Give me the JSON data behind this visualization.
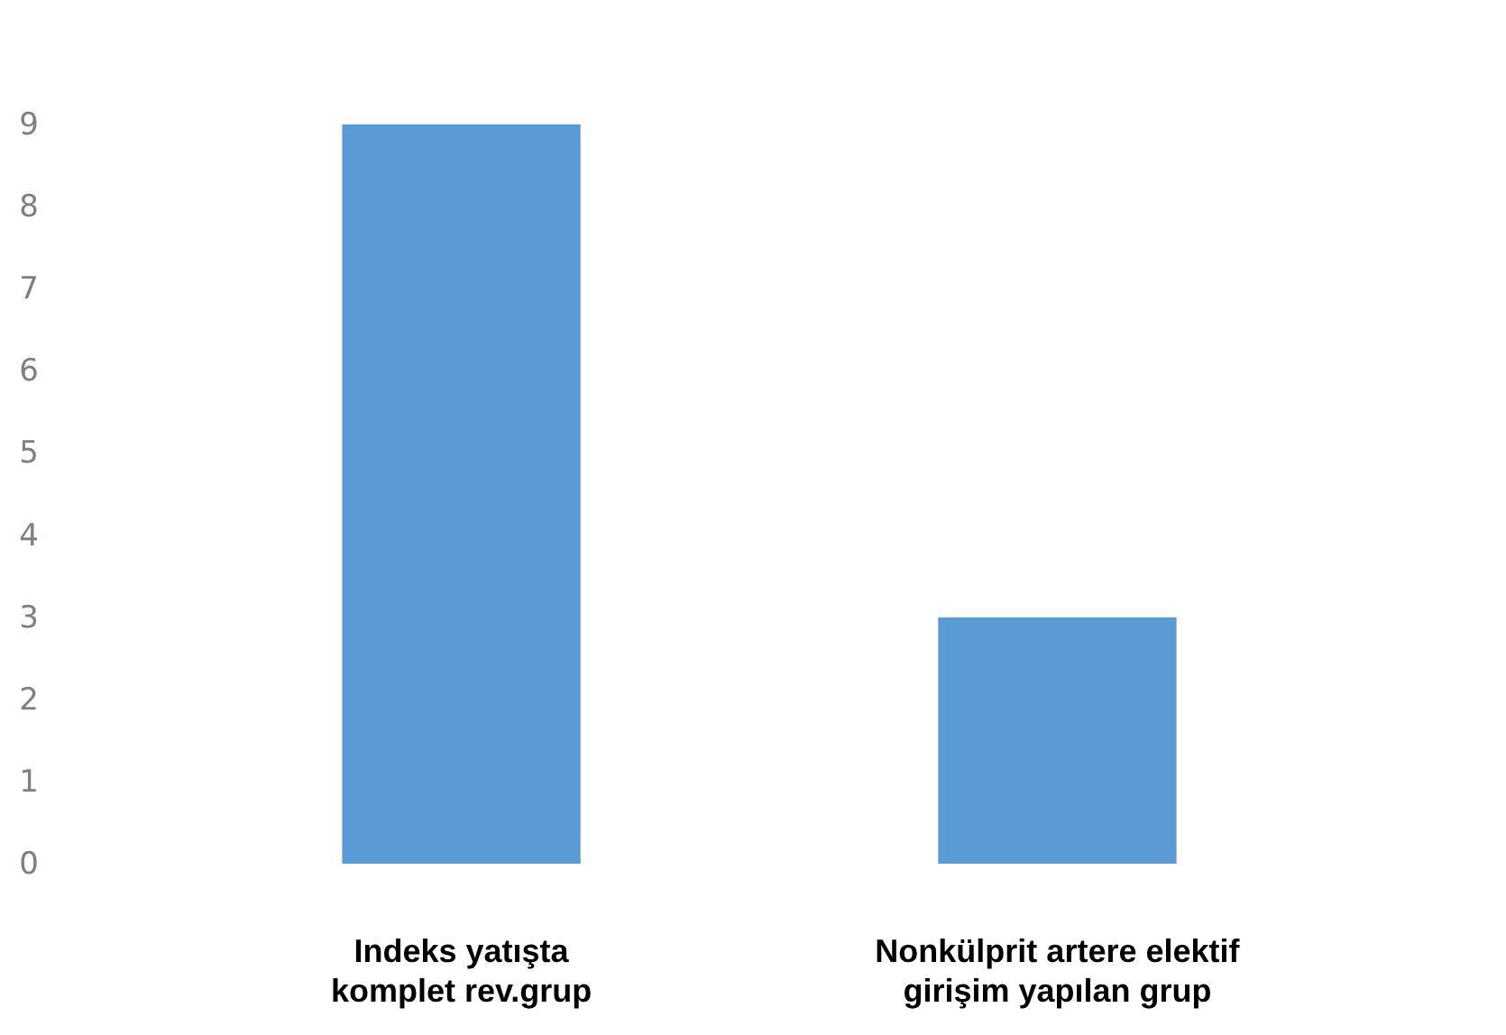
{
  "chart_data": {
    "type": "bar",
    "categories": [
      "Indeks yatışta komplet rev.grup",
      "Nonkülprit artere elektif girişim yapılan grup"
    ],
    "values": [
      9,
      3
    ],
    "color": "#5b9bd5",
    "ylim": [
      0,
      9
    ],
    "yticks": [
      0,
      1,
      2,
      3,
      4,
      5,
      6,
      7,
      8,
      9
    ],
    "grid": false,
    "legend": false
  }
}
